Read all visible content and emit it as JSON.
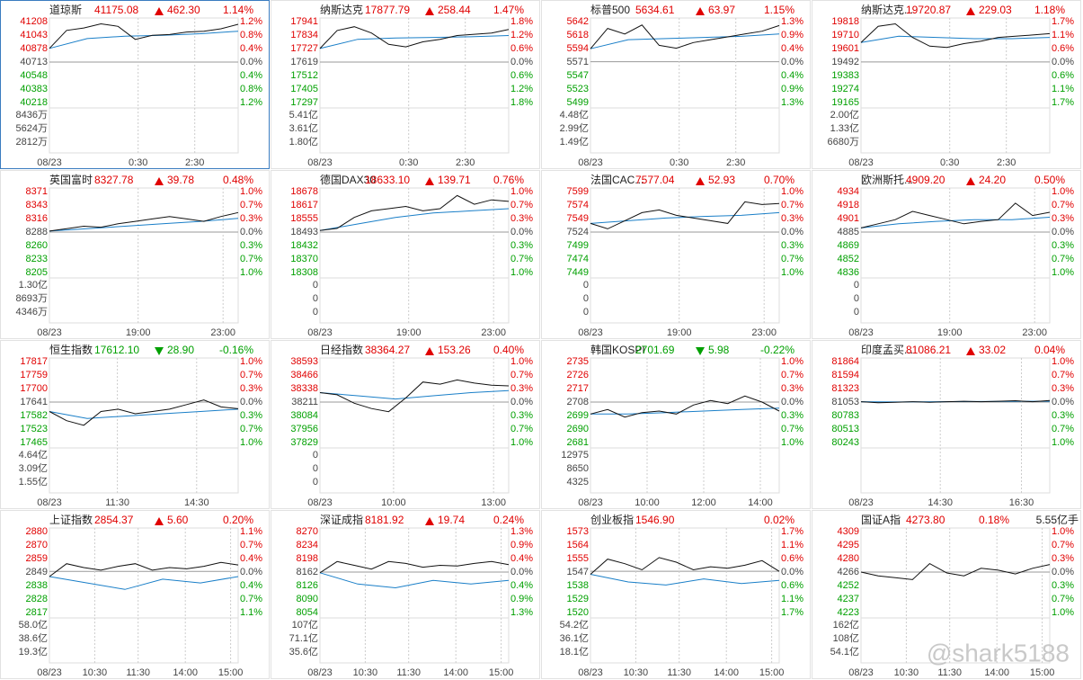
{
  "panels": [
    {
      "name": "道琼斯",
      "price": "41175.08",
      "change": "462.30",
      "pct": "1.14%",
      "direction": "up",
      "left_axis": [
        41208,
        41043,
        40878,
        40713,
        40548,
        40383,
        40218
      ],
      "right_axis": [
        "1.2%",
        "0.8%",
        "0.4%",
        "0.0%",
        "0.4%",
        "0.8%",
        "1.2%"
      ],
      "volume_axis": [
        "8436万",
        "5624万",
        "2812万"
      ],
      "times": [
        "08/23",
        "0:30",
        "2:30"
      ],
      "price_line": [
        40880,
        41100,
        41130,
        41180,
        41150,
        40990,
        41040,
        41050,
        41080,
        41090,
        41120,
        41175
      ],
      "avg_line": [
        40880,
        41000,
        41030,
        41040,
        41060,
        41090
      ]
    },
    {
      "name": "纳斯达克",
      "price": "17877.79",
      "change": "258.44",
      "pct": "1.47%",
      "direction": "up",
      "left_axis": [
        17941,
        17834,
        17727,
        17619,
        17512,
        17405,
        17297
      ],
      "right_axis": [
        "1.8%",
        "1.2%",
        "0.6%",
        "0.0%",
        "0.6%",
        "1.2%",
        "1.8%"
      ],
      "volume_axis": [
        "5.41亿",
        "3.61亿",
        "1.80亿"
      ],
      "times": [
        "08/23",
        "0:30",
        "2:30"
      ],
      "price_line": [
        17727,
        17870,
        17900,
        17850,
        17760,
        17740,
        17780,
        17800,
        17830,
        17840,
        17850,
        17878
      ],
      "avg_line": [
        17727,
        17800,
        17810,
        17815,
        17820,
        17830
      ]
    },
    {
      "name": "标普500",
      "price": "5634.61",
      "change": "63.97",
      "pct": "1.15%",
      "direction": "up",
      "left_axis": [
        5642,
        5618,
        5594,
        5571,
        5547,
        5523,
        5499
      ],
      "right_axis": [
        "1.3%",
        "0.9%",
        "0.4%",
        "0.0%",
        "0.4%",
        "0.9%",
        "1.3%"
      ],
      "volume_axis": [
        "4.48亿",
        "2.99亿",
        "1.49亿"
      ],
      "times": [
        "08/23",
        "0:30",
        "2:30"
      ],
      "price_line": [
        5594,
        5630,
        5620,
        5636,
        5600,
        5595,
        5605,
        5610,
        5615,
        5620,
        5625,
        5635
      ],
      "avg_line": [
        5594,
        5610,
        5612,
        5614,
        5616,
        5620
      ]
    },
    {
      "name": "纳斯达克...",
      "price": "19720.87",
      "change": "229.03",
      "pct": "1.18%",
      "direction": "up",
      "left_axis": [
        19818,
        19710,
        19601,
        19492,
        19383,
        19274,
        19165
      ],
      "right_axis": [
        "1.7%",
        "1.1%",
        "0.6%",
        "0.0%",
        "0.6%",
        "1.1%",
        "1.7%"
      ],
      "volume_axis": [
        "2.00亿",
        "1.33亿",
        "6680万"
      ],
      "times": [
        "08/23",
        "0:30",
        "2:30"
      ],
      "price_line": [
        19650,
        19780,
        19800,
        19690,
        19620,
        19610,
        19640,
        19660,
        19690,
        19700,
        19710,
        19721
      ],
      "avg_line": [
        19650,
        19700,
        19690,
        19680,
        19680,
        19690
      ]
    },
    {
      "name": "英国富时",
      "price": "8327.78",
      "change": "39.78",
      "pct": "0.48%",
      "direction": "up",
      "left_axis": [
        8371,
        8343,
        8316,
        8288,
        8260,
        8233,
        8205
      ],
      "right_axis": [
        "1.0%",
        "0.7%",
        "0.3%",
        "0.0%",
        "0.3%",
        "0.7%",
        "1.0%"
      ],
      "volume_axis": [
        "1.30亿",
        "8693万",
        "4346万"
      ],
      "times": [
        "08/23",
        "19:00",
        "23:00"
      ],
      "price_line": [
        8290,
        8295,
        8300,
        8298,
        8305,
        8310,
        8315,
        8320,
        8315,
        8310,
        8320,
        8328
      ],
      "avg_line": [
        8290,
        8295,
        8300,
        8305,
        8310,
        8316
      ]
    },
    {
      "name": "德国DAX30",
      "price": "18633.10",
      "change": "139.71",
      "pct": "0.76%",
      "direction": "up",
      "left_axis": [
        18678,
        18617,
        18555,
        18493,
        18432,
        18370,
        18308
      ],
      "right_axis": [
        "1.0%",
        "0.7%",
        "0.3%",
        "0.0%",
        "0.3%",
        "0.7%",
        "1.0%"
      ],
      "volume_axis": [
        0,
        0,
        0
      ],
      "times": [
        "08/23",
        "19:00",
        "23:00"
      ],
      "price_line": [
        18500,
        18510,
        18560,
        18590,
        18600,
        18610,
        18590,
        18600,
        18660,
        18620,
        18640,
        18633
      ],
      "avg_line": [
        18500,
        18530,
        18560,
        18580,
        18590,
        18600
      ]
    },
    {
      "name": "法国CAC...",
      "price": "7577.04",
      "change": "52.93",
      "pct": "0.70%",
      "direction": "up",
      "left_axis": [
        7599,
        7574,
        7549,
        7524,
        7499,
        7474,
        7449
      ],
      "right_axis": [
        "1.0%",
        "0.7%",
        "0.3%",
        "0.0%",
        "0.3%",
        "0.7%",
        "1.0%"
      ],
      "volume_axis": [
        0,
        0,
        0
      ],
      "times": [
        "08/23",
        "19:00",
        "23:00"
      ],
      "price_line": [
        7540,
        7530,
        7545,
        7560,
        7565,
        7555,
        7550,
        7545,
        7540,
        7580,
        7575,
        7577
      ],
      "avg_line": [
        7540,
        7545,
        7550,
        7553,
        7555,
        7560
      ]
    },
    {
      "name": "欧洲斯托...",
      "price": "4909.20",
      "change": "24.20",
      "pct": "0.50%",
      "direction": "up",
      "left_axis": [
        4934,
        4918,
        4901,
        4885,
        4869,
        4852,
        4836
      ],
      "right_axis": [
        "1.0%",
        "0.7%",
        "0.3%",
        "0.0%",
        "0.3%",
        "0.7%",
        "1.0%"
      ],
      "volume_axis": [
        0,
        0,
        0
      ],
      "times": [
        "08/23",
        "19:00",
        "23:00"
      ],
      "price_line": [
        4890,
        4895,
        4900,
        4910,
        4905,
        4900,
        4895,
        4898,
        4900,
        4920,
        4905,
        4909
      ],
      "avg_line": [
        4890,
        4895,
        4898,
        4900,
        4900,
        4903
      ]
    },
    {
      "name": "恒生指数",
      "price": "17612.10",
      "change": "28.90",
      "pct": "-0.16%",
      "direction": "down",
      "left_axis": [
        17817,
        17759,
        17700,
        17641,
        17582,
        17523,
        17465
      ],
      "right_axis": [
        "1.0%",
        "0.7%",
        "0.3%",
        "0.0%",
        "0.3%",
        "0.7%",
        "1.0%"
      ],
      "volume_axis": [
        "4.64亿",
        "3.09亿",
        "1.55亿"
      ],
      "times": [
        "08/23",
        "11:30",
        "14:30"
      ],
      "price_line": [
        17600,
        17560,
        17540,
        17600,
        17610,
        17590,
        17600,
        17610,
        17630,
        17650,
        17620,
        17612
      ],
      "avg_line": [
        17600,
        17570,
        17580,
        17590,
        17600,
        17610
      ]
    },
    {
      "name": "日经指数",
      "price": "38364.27",
      "change": "153.26",
      "pct": "0.40%",
      "direction": "up",
      "left_axis": [
        38593,
        38466,
        38338,
        38211,
        38084,
        37956,
        37829
      ],
      "right_axis": [
        "1.0%",
        "0.7%",
        "0.3%",
        "0.0%",
        "0.3%",
        "0.7%",
        "1.0%"
      ],
      "volume_axis": [
        0,
        0,
        0
      ],
      "times": [
        "08/23",
        "10:00",
        "13:00"
      ],
      "price_line": [
        38300,
        38280,
        38200,
        38150,
        38120,
        38250,
        38400,
        38380,
        38420,
        38390,
        38370,
        38364
      ],
      "avg_line": [
        38300,
        38270,
        38240,
        38270,
        38300,
        38320
      ]
    },
    {
      "name": "韩国KOSPI",
      "price": "2701.69",
      "change": "5.98",
      "pct": "-0.22%",
      "direction": "down",
      "left_axis": [
        2735,
        2726,
        2717,
        2708,
        2699,
        2690,
        2681
      ],
      "right_axis": [
        "1.0%",
        "0.7%",
        "0.3%",
        "0.0%",
        "0.3%",
        "0.7%",
        "1.0%"
      ],
      "volume_axis": [
        12975,
        8650,
        4325
      ],
      "times": [
        "08/23",
        "10:00",
        "12:00",
        "14:00"
      ],
      "price_line": [
        2700,
        2703,
        2698,
        2701,
        2702,
        2700,
        2706,
        2709,
        2707,
        2712,
        2708,
        2702
      ],
      "avg_line": [
        2700,
        2700,
        2701,
        2702,
        2703,
        2704
      ]
    },
    {
      "name": "印度孟买...",
      "price": "81086.21",
      "change": "33.02",
      "pct": "0.04%",
      "direction": "up",
      "left_axis": [
        81864,
        81594,
        81323,
        81053,
        80783,
        80513,
        80243
      ],
      "right_axis": [
        "1.0%",
        "0.7%",
        "0.3%",
        "0.0%",
        "0.3%",
        "0.7%",
        "1.0%"
      ],
      "times": [
        "08/23",
        "14:30",
        "16:30"
      ],
      "price_line": [
        81060,
        81040,
        81050,
        81060,
        81050,
        81060,
        81070,
        81060,
        81070,
        81080,
        81060,
        81086
      ],
      "avg_line": [
        81060,
        81055,
        81060,
        81065,
        81068,
        81070
      ]
    },
    {
      "name": "上证指数",
      "price": "2854.37",
      "change": "5.60",
      "pct": "0.20%",
      "direction": "up",
      "left_axis": [
        2880,
        2870,
        2859,
        2849,
        2838,
        2828,
        2817
      ],
      "right_axis": [
        "1.1%",
        "0.7%",
        "0.4%",
        "0.0%",
        "0.4%",
        "0.7%",
        "1.1%"
      ],
      "volume_axis": [
        "58.0亿",
        "38.6亿",
        "19.3亿"
      ],
      "times": [
        "08/23",
        "10:30",
        "11:30",
        "14:00",
        "15:00"
      ],
      "price_line": [
        2845,
        2855,
        2852,
        2850,
        2853,
        2855,
        2850,
        2852,
        2851,
        2853,
        2856,
        2854
      ],
      "avg_line": [
        2845,
        2840,
        2835,
        2843,
        2840,
        2845
      ]
    },
    {
      "name": "深证成指",
      "price": "8181.92",
      "change": "19.74",
      "pct": "0.24%",
      "direction": "up",
      "left_axis": [
        8270,
        8234,
        8198,
        8162,
        8126,
        8090,
        8054
      ],
      "right_axis": [
        "1.3%",
        "0.9%",
        "0.4%",
        "0.0%",
        "0.4%",
        "0.9%",
        "1.3%"
      ],
      "volume_axis": [
        "107亿",
        "71.1亿",
        "35.6亿"
      ],
      "times": [
        "08/23",
        "10:30",
        "11:30",
        "14:00",
        "15:00"
      ],
      "price_line": [
        8160,
        8190,
        8180,
        8170,
        8190,
        8185,
        8175,
        8180,
        8178,
        8185,
        8190,
        8182
      ],
      "avg_line": [
        8160,
        8130,
        8120,
        8140,
        8130,
        8140
      ]
    },
    {
      "name": "创业板指",
      "price": "1546.90",
      "pct": "0.02%",
      "direction": "up",
      "left_axis": [
        1573,
        1564,
        1555,
        1547,
        1538,
        1529,
        1520
      ],
      "right_axis": [
        "1.7%",
        "1.1%",
        "0.6%",
        "0.0%",
        "0.6%",
        "1.1%",
        "1.7%"
      ],
      "volume_axis": [
        "54.2亿",
        "36.1亿",
        "18.1亿"
      ],
      "times": [
        "08/23",
        "10:30",
        "11:30",
        "14:00",
        "15:00"
      ],
      "price_line": [
        1545,
        1555,
        1552,
        1548,
        1556,
        1553,
        1548,
        1550,
        1549,
        1551,
        1554,
        1547
      ],
      "avg_line": [
        1545,
        1540,
        1538,
        1542,
        1539,
        1541
      ]
    },
    {
      "name": "国证A指",
      "price": "4273.80",
      "pct": "0.18%",
      "volume_total": "5.55亿手",
      "direction": "up",
      "left_axis": [
        4309,
        4295,
        4280,
        4266,
        4252,
        4237,
        4223
      ],
      "right_axis": [
        "1.0%",
        "0.7%",
        "0.3%",
        "0.0%",
        "0.3%",
        "0.7%",
        "1.0%"
      ],
      "volume_axis": [
        "162亿",
        "108亿",
        "54.1亿"
      ],
      "times": [
        "08/23",
        "10:30",
        "11:30",
        "14:00",
        "15:00"
      ],
      "price_line": [
        4266,
        4262,
        4260,
        4258,
        4275,
        4265,
        4262,
        4270,
        4268,
        4264,
        4270,
        4274
      ]
    }
  ],
  "watermark": "@shark5188"
}
